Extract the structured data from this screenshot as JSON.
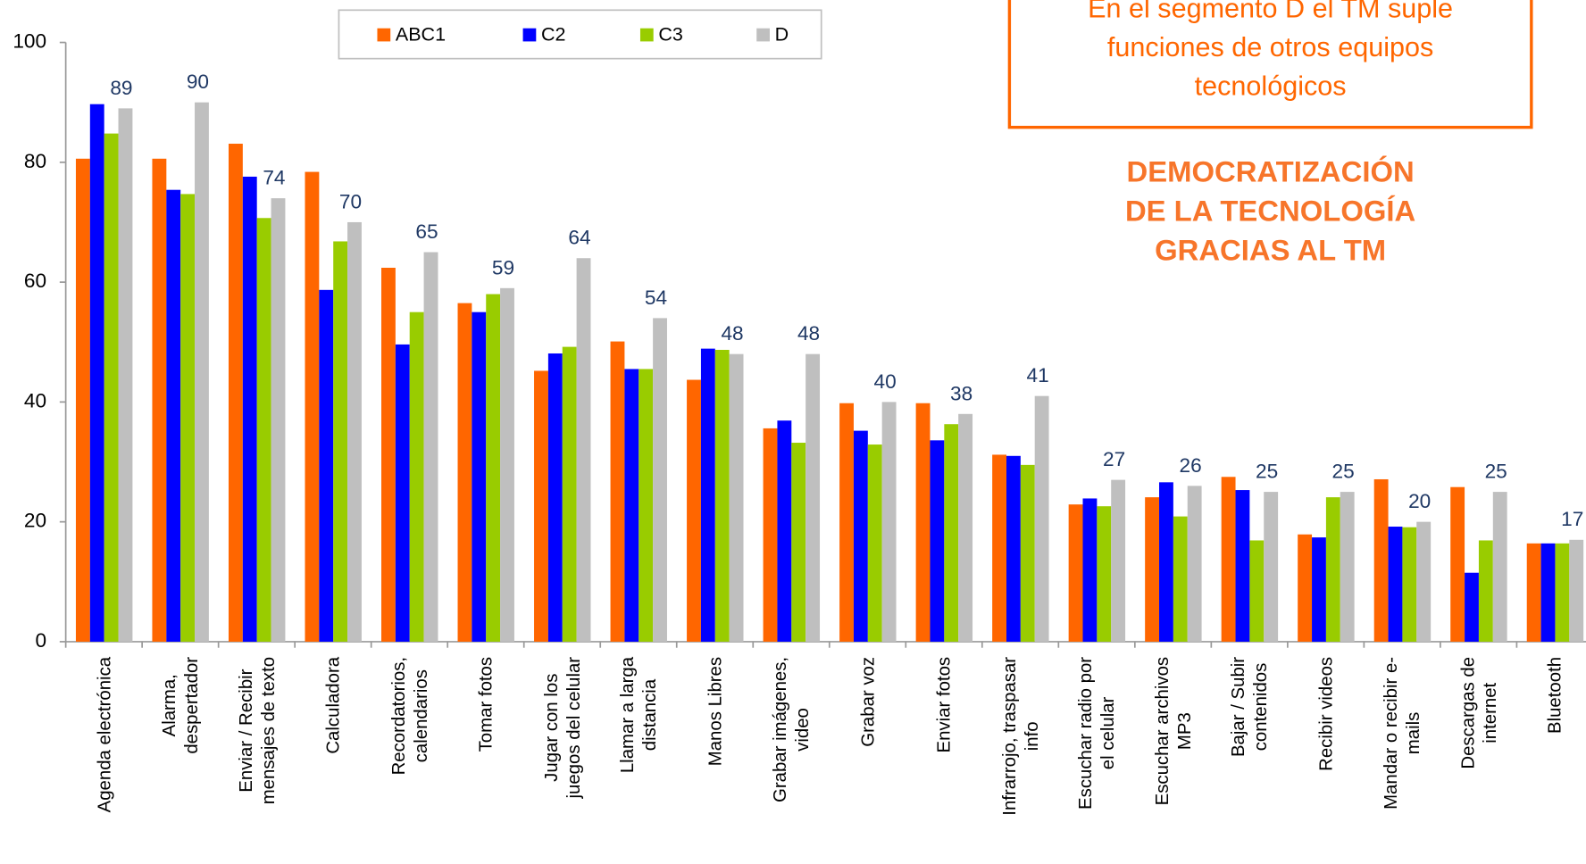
{
  "chart_data": {
    "type": "bar",
    "categories": [
      "Agenda electrónica",
      "Alarma,\ndespertador",
      "Enviar / Recibir\nmensajes de texto",
      "Calculadora",
      "Recordatorios,\ncalendarios",
      "Tomar fotos",
      "Jugar con los\njuegos del celular",
      "Llamar a larga\ndistancia",
      "Manos Libres",
      "Grabar imágenes,\nvideo",
      "Grabar voz",
      "Enviar fotos",
      "Infrarrojo, traspasar\ninfo",
      "Escuchar radio por\nel celular",
      "Escuchar archivos\nMP3",
      "Bajar / Subir\ncontenidos",
      "Recibir videos",
      "Mandar o recibir e-\nmails",
      "Descargas de\ninternet",
      "Bluetooth"
    ],
    "series": [
      {
        "name": "ABC1",
        "color": "#ff6600",
        "values": [
          80.6,
          80.6,
          83.1,
          78.4,
          62.4,
          56.5,
          45.2,
          50.1,
          43.7,
          35.6,
          39.8,
          39.8,
          31.2,
          22.9,
          24.1,
          27.5,
          17.9,
          27.1,
          25.8,
          16.4
        ]
      },
      {
        "name": "C2",
        "color": "#0000ff",
        "values": [
          89.7,
          75.4,
          77.6,
          58.7,
          49.6,
          55.0,
          48.1,
          45.5,
          48.9,
          36.9,
          35.2,
          33.6,
          31.0,
          23.9,
          26.6,
          25.3,
          17.4,
          19.2,
          11.5,
          16.4
        ]
      },
      {
        "name": "C3",
        "color": "#99cc00",
        "values": [
          84.8,
          74.7,
          70.7,
          66.8,
          55.0,
          58.0,
          49.2,
          45.5,
          48.7,
          33.2,
          32.9,
          36.3,
          29.5,
          22.6,
          20.9,
          16.9,
          24.1,
          19.1,
          16.9,
          16.4
        ]
      },
      {
        "name": "D",
        "color": "#bfbfbf",
        "show_labels": true,
        "values": [
          89,
          90,
          74,
          70,
          65,
          59,
          64,
          54,
          48,
          48,
          40,
          38,
          41,
          27,
          26,
          25,
          25,
          20,
          25,
          17
        ]
      }
    ],
    "ylim": [
      0,
      100
    ],
    "yticks": [
      0,
      20,
      40,
      60,
      80,
      100
    ],
    "grid": false,
    "legend": "top",
    "annotation_box": [
      "En el segmento D el TM suple",
      "funciones de otros equipos",
      "tecnológicos"
    ],
    "headline": [
      "DEMOCRATIZACIÓN",
      "DE LA TECNOLOGÍA",
      "GRACIAS AL TM"
    ]
  }
}
